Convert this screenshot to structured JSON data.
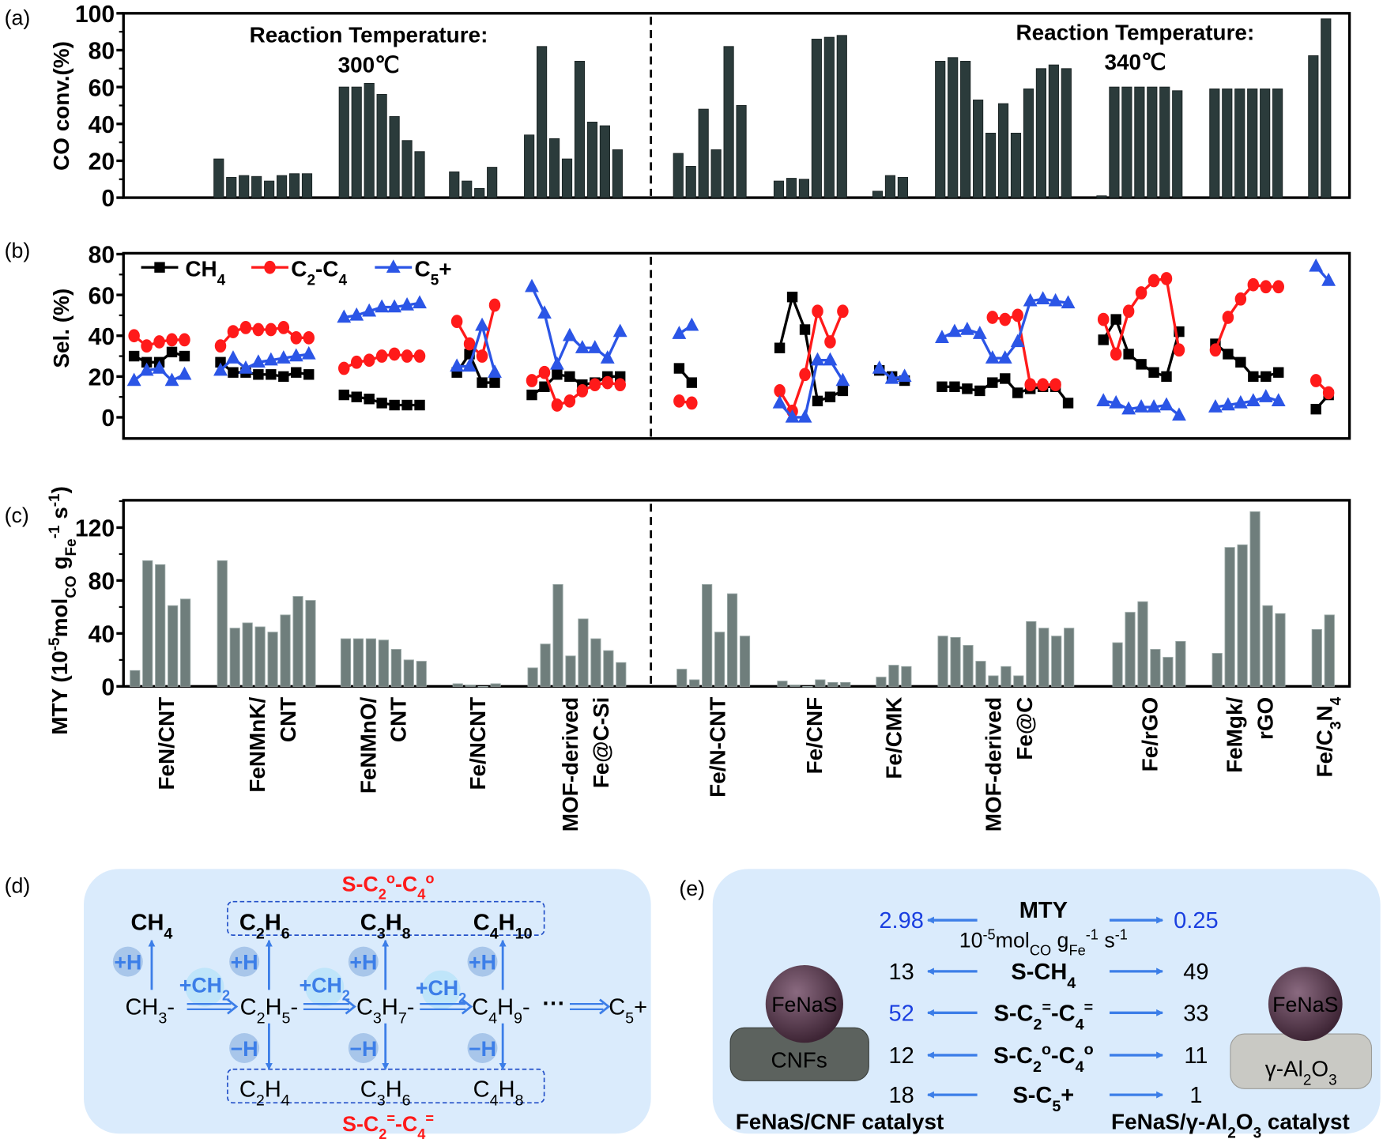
{
  "panel_labels": [
    "(a)",
    "(b)",
    "(c)",
    "(d)",
    "(e)"
  ],
  "colors": {
    "bar_a": "#2b3b3b",
    "bar_c": "#6f7e7c",
    "ch4": "#000000",
    "c2c4": "#ff1a1a",
    "c5": "#2b55e6",
    "arrow": "#3c7ee8",
    "panel_bg": "#daebfc",
    "highlight_red": "#ff1a1a",
    "highlight_blue": "#1a3fe0"
  },
  "chart_data": [
    {
      "panel": "(a)",
      "type": "bar",
      "ylabel": "CO conv.(%)",
      "ylim": [
        0,
        100
      ],
      "yticks": [
        0,
        20,
        40,
        60,
        80,
        100
      ],
      "annotations": [
        {
          "line1": "Reaction Temperature:",
          "line2": "300℃"
        },
        {
          "line1": "Reaction Temperature:",
          "line2": "340℃"
        }
      ],
      "values": [
        [],
        [
          21,
          11,
          12,
          11.5,
          9,
          12,
          13,
          13
        ],
        [
          60,
          60,
          62,
          56,
          44,
          31,
          25
        ],
        [
          14,
          9,
          5,
          16.5
        ],
        [
          34,
          82,
          32,
          21,
          74,
          41,
          39,
          26
        ],
        [
          24,
          17,
          48,
          26,
          82,
          50
        ],
        [
          9,
          10.5,
          10,
          86,
          87,
          88
        ],
        [
          3.5,
          12,
          11
        ],
        [
          74,
          76,
          74,
          53,
          35,
          51,
          35,
          59,
          70,
          72,
          70
        ],
        [
          1,
          60,
          60,
          60,
          60,
          60,
          58
        ],
        [
          59,
          59,
          59,
          59,
          59,
          59
        ],
        [
          77,
          97
        ]
      ]
    },
    {
      "panel": "(b)",
      "type": "line",
      "ylabel": "Sel. (%)",
      "ylim": [
        -10,
        80
      ],
      "yticks": [
        0,
        20,
        40,
        60,
        80
      ],
      "legend_position": "top-left",
      "series": [
        {
          "name": [
            {
              "t": "CH"
            },
            {
              "t": "4",
              "s": "sub"
            }
          ],
          "marker": "square",
          "values": [
            [
              30,
              27,
              27,
              32,
              30
            ],
            [
              27,
              22,
              22,
              21,
              21,
              20,
              22,
              21
            ],
            [
              11,
              10,
              9,
              7,
              6,
              6,
              6
            ],
            [
              22,
              31,
              17,
              17
            ],
            [
              11,
              15,
              21,
              20,
              16,
              17,
              20,
              20
            ],
            [
              24,
              17
            ],
            [
              34,
              59,
              43,
              8,
              10,
              13
            ],
            [
              23,
              20,
              18
            ],
            [
              15,
              15,
              14,
              13,
              17,
              19,
              12,
              14,
              15,
              15,
              7
            ],
            [
              38,
              48,
              31,
              26,
              22,
              20,
              42
            ],
            [
              36,
              31,
              27,
              20,
              20,
              22
            ],
            [
              4,
              11
            ]
          ]
        },
        {
          "name": [
            {
              "t": "C"
            },
            {
              "t": "2",
              "s": "sub"
            },
            {
              "t": "-C"
            },
            {
              "t": "4",
              "s": "sub"
            }
          ],
          "marker": "circle",
          "values": [
            [
              40,
              35,
              37,
              38,
              38
            ],
            [
              35,
              42,
              44,
              43,
              43,
              44,
              39,
              39
            ],
            [
              24,
              27,
              28,
              30,
              31,
              30,
              30
            ],
            [
              47,
              36,
              30,
              55
            ],
            [
              18,
              22,
              6,
              8,
              13,
              16,
              17,
              16
            ],
            [
              8,
              7
            ],
            [
              13,
              3,
              21,
              52,
              37,
              52
            ],
            [
              null,
              null,
              null
            ],
            [
              null,
              null,
              null,
              null,
              49,
              48,
              50,
              16,
              16,
              16,
              null
            ],
            [
              48,
              31,
              52,
              61,
              67,
              68,
              33
            ],
            [
              33,
              49,
              58,
              65,
              64,
              64
            ],
            [
              18,
              12
            ]
          ]
        },
        {
          "name": [
            {
              "t": "C"
            },
            {
              "t": "5",
              "s": "sub"
            },
            {
              "t": "+"
            }
          ],
          "marker": "triangle",
          "values": [
            [
              18,
              23,
              24,
              18,
              21
            ],
            [
              23,
              29,
              24,
              27,
              28,
              29,
              30,
              31
            ],
            [
              49,
              50,
              52,
              54,
              54,
              55,
              56
            ],
            [
              25,
              25,
              45,
              22
            ],
            [
              64,
              51,
              26,
              40,
              34,
              34,
              29,
              42
            ],
            [
              41,
              45
            ],
            [
              7,
              0,
              0,
              28,
              28,
              18
            ],
            [
              24,
              19,
              20
            ],
            [
              39,
              42,
              43,
              41,
              29,
              29,
              37,
              57,
              58,
              57,
              56
            ],
            [
              8,
              7,
              4,
              5,
              5,
              6,
              1
            ],
            [
              5,
              6,
              7,
              8,
              10,
              8
            ],
            [
              74,
              67
            ]
          ]
        }
      ]
    },
    {
      "panel": "(c)",
      "type": "bar",
      "ylabel": [
        {
          "t": "MTY (10"
        },
        {
          "t": "-5",
          "s": "sup"
        },
        {
          "t": "mol"
        },
        {
          "t": "CO",
          "s": "sub"
        },
        {
          "t": " g"
        },
        {
          "t": "Fe",
          "s": "sub"
        },
        {
          "t": "-1",
          "s": "sup"
        },
        {
          "t": " s"
        },
        {
          "t": "-1",
          "s": "sup"
        },
        {
          "t": ")"
        }
      ],
      "ylim": [
        0,
        140
      ],
      "yticks": [
        0,
        40,
        80,
        120
      ],
      "categories": [
        [
          [
            {
              "t": "FeN/CNT"
            }
          ]
        ],
        [
          [
            {
              "t": "FeNMnK/"
            }
          ],
          [
            {
              "t": "CNT"
            }
          ]
        ],
        [
          [
            {
              "t": "FeNMnO/"
            }
          ],
          [
            {
              "t": "CNT"
            }
          ]
        ],
        [
          [
            {
              "t": "Fe/NCNT"
            }
          ]
        ],
        [
          [
            {
              "t": "MOF-derived"
            }
          ],
          [
            {
              "t": "Fe@C-Si"
            }
          ]
        ],
        [
          [
            {
              "t": "Fe/N-CNT"
            }
          ]
        ],
        [
          [
            {
              "t": "Fe/CNF"
            }
          ]
        ],
        [
          [
            {
              "t": "Fe/CMK"
            }
          ]
        ],
        [
          [
            {
              "t": "MOF-derived"
            }
          ],
          [
            {
              "t": "Fe@C"
            }
          ]
        ],
        [
          [
            {
              "t": "Fe/rGO"
            }
          ]
        ],
        [
          [
            {
              "t": "FeMgk/"
            }
          ],
          [
            {
              "t": "rGO"
            }
          ]
        ],
        [
          [
            {
              "t": "Fe/C"
            },
            {
              "t": "3",
              "s": "sub"
            },
            {
              "t": "N"
            },
            {
              "t": "4",
              "s": "sub"
            }
          ]
        ]
      ],
      "values": [
        [
          12,
          95,
          92,
          61,
          66
        ],
        [
          95,
          44,
          48,
          45,
          41,
          54,
          68,
          65
        ],
        [
          36,
          36,
          36,
          35,
          28,
          20,
          19
        ],
        [
          2,
          1,
          0,
          2
        ],
        [
          14,
          32,
          77,
          23,
          51,
          36,
          27,
          18
        ],
        [
          13,
          5,
          77,
          41,
          70,
          38
        ],
        [
          4,
          1,
          0,
          5,
          3,
          3
        ],
        [
          7,
          16,
          15
        ],
        [
          38,
          37,
          31,
          19,
          8,
          15,
          8,
          49,
          44,
          38,
          44
        ],
        [
          33,
          56,
          64,
          28,
          22,
          34
        ],
        [
          25,
          105,
          107,
          132,
          61,
          55
        ],
        [
          43,
          54
        ]
      ]
    }
  ],
  "panel_d": {
    "top_label": [
      {
        "t": "S-C"
      },
      {
        "t": "2",
        "s": "sub"
      },
      {
        "t": "o",
        "s": "sup"
      },
      {
        "t": "-C"
      },
      {
        "t": "4",
        "s": "sub"
      },
      {
        "t": "o",
        "s": "sup"
      }
    ],
    "bottom_label": [
      {
        "t": "S-C"
      },
      {
        "t": "2",
        "s": "sub"
      },
      {
        "t": "=",
        "s": "sup"
      },
      {
        "t": "-C"
      },
      {
        "t": "4",
        "s": "sub"
      },
      {
        "t": "=",
        "s": "sup"
      }
    ],
    "alkanes": [
      [
        {
          "t": "CH"
        },
        {
          "t": "4",
          "s": "sub"
        }
      ],
      [
        {
          "t": "C"
        },
        {
          "t": "2",
          "s": "sub"
        },
        {
          "t": "H"
        },
        {
          "t": "6",
          "s": "sub"
        }
      ],
      [
        {
          "t": "C"
        },
        {
          "t": "3",
          "s": "sub"
        },
        {
          "t": "H"
        },
        {
          "t": "8",
          "s": "sub"
        }
      ],
      [
        {
          "t": "C"
        },
        {
          "t": "4",
          "s": "sub"
        },
        {
          "t": "H"
        },
        {
          "t": "10",
          "s": "sub"
        }
      ]
    ],
    "intermediates": [
      [
        {
          "t": "CH"
        },
        {
          "t": "3",
          "s": "sub"
        },
        {
          "t": "-"
        }
      ],
      [
        {
          "t": "C"
        },
        {
          "t": "2",
          "s": "sub"
        },
        {
          "t": "H"
        },
        {
          "t": "5",
          "s": "sub"
        },
        {
          "t": "-"
        }
      ],
      [
        {
          "t": "C"
        },
        {
          "t": "3",
          "s": "sub"
        },
        {
          "t": "H"
        },
        {
          "t": "7",
          "s": "sub"
        },
        {
          "t": "-"
        }
      ],
      [
        {
          "t": "C"
        },
        {
          "t": "4",
          "s": "sub"
        },
        {
          "t": "H"
        },
        {
          "t": "9",
          "s": "sub"
        },
        {
          "t": "-"
        }
      ]
    ],
    "alkenes": [
      [
        {
          "t": "C"
        },
        {
          "t": "2",
          "s": "sub"
        },
        {
          "t": "H"
        },
        {
          "t": "4",
          "s": "sub"
        }
      ],
      [
        {
          "t": "C"
        },
        {
          "t": "3",
          "s": "sub"
        },
        {
          "t": "H"
        },
        {
          "t": "6",
          "s": "sub"
        }
      ],
      [
        {
          "t": "C"
        },
        {
          "t": "4",
          "s": "sub"
        },
        {
          "t": "H"
        },
        {
          "t": "8",
          "s": "sub"
        }
      ]
    ],
    "add_h": "+H",
    "remove_h": "−H",
    "add_ch2": [
      {
        "t": "+CH"
      },
      {
        "t": "2",
        "s": "sub"
      }
    ],
    "ellipsis": "···",
    "product": [
      {
        "t": "C"
      },
      {
        "t": "5",
        "s": "sub"
      },
      {
        "t": "+"
      }
    ]
  },
  "panel_e": {
    "rows": [
      {
        "metric": [
          {
            "t": "MTY"
          }
        ],
        "unit": [
          {
            "t": "10"
          },
          {
            "t": "-5",
            "s": "sup"
          },
          {
            "t": "mol"
          },
          {
            "t": "CO",
            "s": "sub"
          },
          {
            "t": " g"
          },
          {
            "t": "Fe",
            "s": "sub"
          },
          {
            "t": "-1",
            "s": "sup"
          },
          {
            "t": " s"
          },
          {
            "t": "-1",
            "s": "sup"
          }
        ],
        "left": "2.98",
        "right": "0.25",
        "left_highlight": true,
        "right_highlight": true
      },
      {
        "metric": [
          {
            "t": "S-CH"
          },
          {
            "t": "4",
            "s": "sub"
          }
        ],
        "left": "13",
        "right": "49",
        "left_highlight": false,
        "right_highlight": false
      },
      {
        "metric": [
          {
            "t": "S-C"
          },
          {
            "t": "2",
            "s": "sub"
          },
          {
            "t": "=",
            "s": "sup"
          },
          {
            "t": "-C"
          },
          {
            "t": "4",
            "s": "sub"
          },
          {
            "t": "=",
            "s": "sup"
          }
        ],
        "left": "52",
        "right": "33",
        "left_highlight": true,
        "right_highlight": false
      },
      {
        "metric": [
          {
            "t": "S-C"
          },
          {
            "t": "2",
            "s": "sub"
          },
          {
            "t": "o",
            "s": "sup"
          },
          {
            "t": "-C"
          },
          {
            "t": "4",
            "s": "sub"
          },
          {
            "t": "o",
            "s": "sup"
          }
        ],
        "left": "12",
        "right": "11",
        "left_highlight": false,
        "right_highlight": false
      },
      {
        "metric": [
          {
            "t": "S-C"
          },
          {
            "t": "5",
            "s": "sub"
          },
          {
            "t": "+"
          }
        ],
        "left": "18",
        "right": "1",
        "left_highlight": false,
        "right_highlight": false
      }
    ],
    "left_catalyst": {
      "particle": "FeNaS",
      "support": [
        {
          "t": "CNFs"
        }
      ],
      "caption": [
        {
          "t": "FeNaS/CNF catalyst"
        }
      ]
    },
    "right_catalyst": {
      "particle": "FeNaS",
      "support": [
        {
          "t": "γ-Al"
        },
        {
          "t": "2",
          "s": "sub"
        },
        {
          "t": "O"
        },
        {
          "t": "3",
          "s": "sub"
        }
      ],
      "caption": [
        {
          "t": "FeNaS/γ-Al"
        },
        {
          "t": "2",
          "s": "sub"
        },
        {
          "t": "O"
        },
        {
          "t": "3",
          "s": "sub"
        },
        {
          "t": " catalyst"
        }
      ]
    }
  }
}
